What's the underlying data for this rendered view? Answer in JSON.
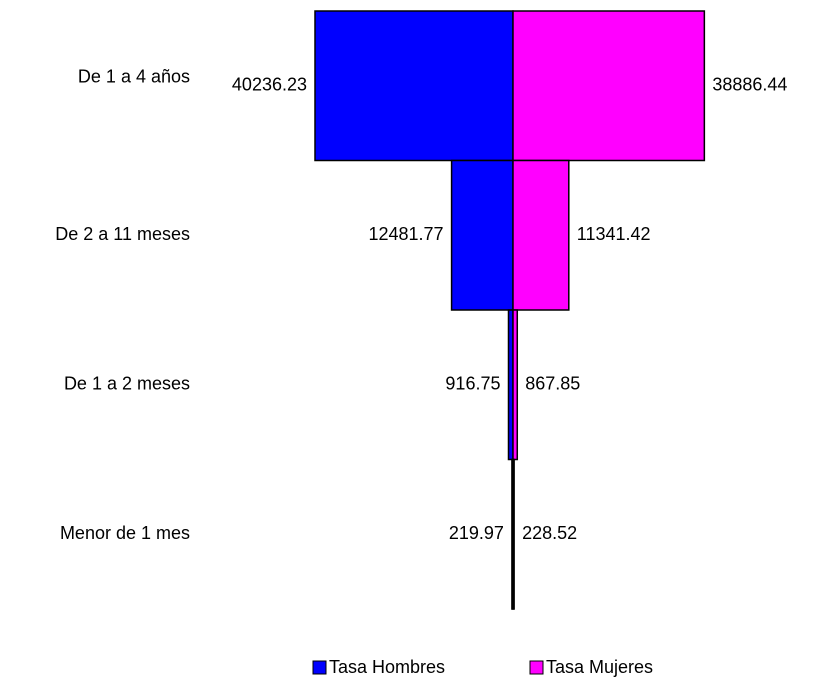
{
  "chart_data": {
    "type": "pyramid",
    "categories": [
      "De 1 a 4 años",
      "De 2 a 11 meses",
      "De 1 a 2 meses",
      "Menor de 1 mes"
    ],
    "series": [
      {
        "name": "Tasa Hombres",
        "color": "#0000ff",
        "values": [
          40236.23,
          12481.77,
          916.75,
          219.97
        ]
      },
      {
        "name": "Tasa Mujeres",
        "color": "#ff00ff",
        "values": [
          38886.44,
          11341.42,
          867.85,
          228.52
        ]
      }
    ]
  }
}
